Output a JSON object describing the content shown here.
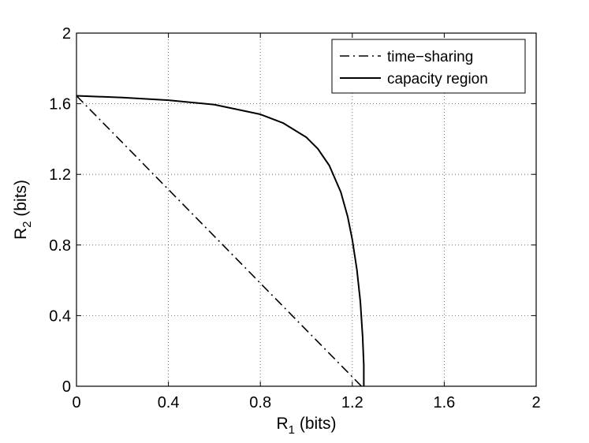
{
  "chart_data": {
    "type": "line",
    "title": "",
    "xlabel": {
      "main": "R",
      "sub": "1",
      "unit": " (bits)"
    },
    "ylabel": {
      "main": "R",
      "sub": "2",
      "unit": " (bits)"
    },
    "xlim": [
      0,
      2
    ],
    "ylim": [
      0,
      2
    ],
    "xticks": [
      0,
      0.4,
      0.8,
      1.2,
      1.6,
      2
    ],
    "yticks": [
      0,
      0.4,
      0.8,
      1.2,
      1.6,
      2
    ],
    "xtick_labels": [
      "0",
      "0.4",
      "0.8",
      "1.2",
      "1.6",
      "2"
    ],
    "ytick_labels": [
      "0",
      "0.4",
      "0.8",
      "1.2",
      "1.6",
      "2"
    ],
    "grid": true,
    "legend_position": "top-right",
    "series": [
      {
        "name": "time−sharing",
        "style": "dash-dot",
        "color": "#000000",
        "x": [
          0,
          1.24
        ],
        "y": [
          1.645,
          0
        ]
      },
      {
        "name": "capacity region",
        "style": "solid",
        "color": "#000000",
        "x": [
          0,
          0.2,
          0.4,
          0.6,
          0.8,
          0.9,
          1.0,
          1.05,
          1.1,
          1.15,
          1.18,
          1.2,
          1.22,
          1.235,
          1.245,
          1.25,
          1.25
        ],
        "y": [
          1.645,
          1.635,
          1.62,
          1.595,
          1.54,
          1.49,
          1.41,
          1.345,
          1.25,
          1.1,
          0.96,
          0.83,
          0.66,
          0.48,
          0.28,
          0.12,
          0
        ]
      }
    ]
  }
}
